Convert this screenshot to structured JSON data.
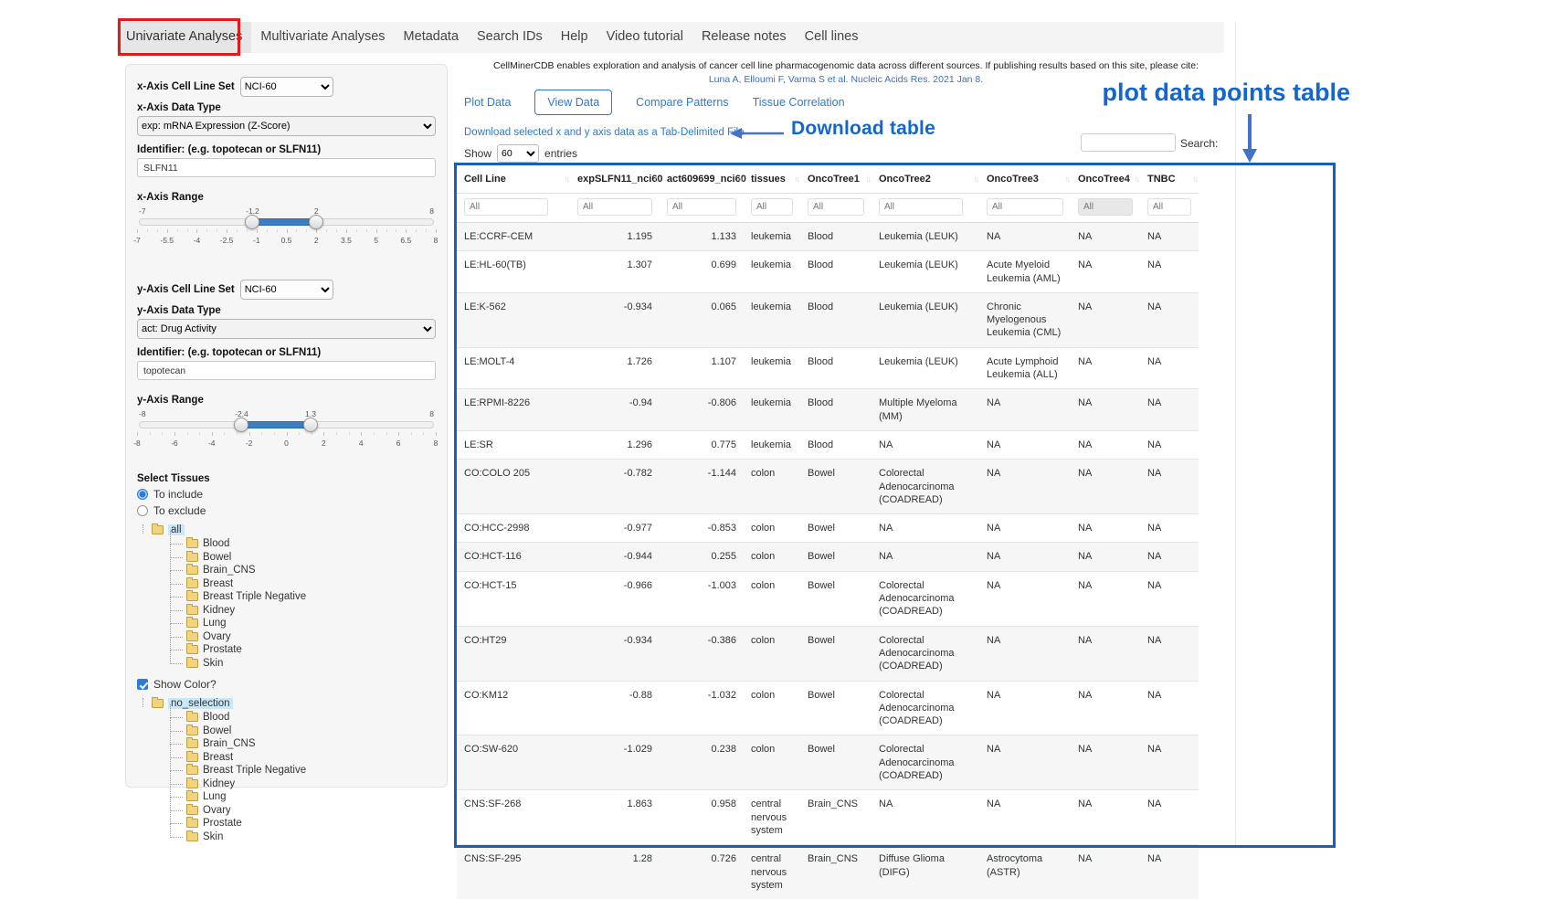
{
  "nav": {
    "items": [
      "Univariate Analyses",
      "Multivariate Analyses",
      "Metadata",
      "Search IDs",
      "Help",
      "Video tutorial",
      "Release notes",
      "Cell lines"
    ],
    "active_index": 0
  },
  "sidebar": {
    "x_axis": {
      "cell_line_set_label": "x-Axis Cell Line Set",
      "cell_line_set_value": "NCI-60",
      "data_type_label": "x-Axis Data Type",
      "data_type_value": "exp: mRNA Expression (Z-Score)",
      "identifier_label": "Identifier: (e.g. topotecan or SLFN11)",
      "identifier_value": "SLFN11",
      "range_label": "x-Axis Range",
      "range": {
        "min": -7,
        "max": 8,
        "low": -1.2,
        "high": 2,
        "min_label": "-7",
        "max_label": "8",
        "low_label": "-1.2",
        "high_label": "2",
        "ticks": [
          "-7",
          "-5.5",
          "-4",
          "-2.5",
          "-1",
          "0.5",
          "2",
          "3.5",
          "5",
          "6.5",
          "8"
        ]
      }
    },
    "y_axis": {
      "cell_line_set_label": "y-Axis Cell Line Set",
      "cell_line_set_value": "NCI-60",
      "data_type_label": "y-Axis Data Type",
      "data_type_value": "act: Drug Activity",
      "identifier_label": "Identifier: (e.g. topotecan or SLFN11)",
      "identifier_value": "topotecan",
      "range_label": "y-Axis Range",
      "range": {
        "min": -8,
        "max": 8,
        "low": -2.4,
        "high": 1.3,
        "min_label": "-8",
        "max_label": "8",
        "low_label": "-2.4",
        "high_label": "1.3",
        "ticks": [
          "-8",
          "-6",
          "-4",
          "-2",
          "0",
          "2",
          "4",
          "6",
          "8"
        ]
      }
    },
    "tissues": {
      "title": "Select Tissues",
      "radio_include": "To include",
      "radio_exclude": "To exclude",
      "include_selected": true,
      "include_tree": {
        "root": "all",
        "children": [
          "Blood",
          "Bowel",
          "Brain_CNS",
          "Breast",
          "Breast Triple Negative",
          "Kidney",
          "Lung",
          "Ovary",
          "Prostate",
          "Skin"
        ]
      },
      "show_color_label": "Show Color?",
      "show_color_checked": true,
      "color_tree": {
        "root": "no_selection",
        "children": [
          "Blood",
          "Bowel",
          "Brain_CNS",
          "Breast",
          "Breast Triple Negative",
          "Kidney",
          "Lung",
          "Ovary",
          "Prostate",
          "Skin"
        ]
      }
    }
  },
  "main": {
    "citation_line1": "CellMinerCDB enables exploration and analysis of cancer cell line pharmacogenomic data across different sources. If publishing results based on this site, please cite:",
    "citation_link": "Luna A, Elloumi F, Varma S et al. Nucleic Acids Res. 2021 Jan 8.",
    "tabs": [
      "Plot Data",
      "View Data",
      "Compare Patterns",
      "Tissue Correlation"
    ],
    "active_tab_index": 1,
    "download_link": "Download selected x and y axis data as a Tab-Delimited File",
    "show_label": "Show",
    "entries_value": "60",
    "entries_label": "entries",
    "search_label": "Search:"
  },
  "annotations": {
    "download_table": "Download table",
    "plot_table": "plot data points table",
    "text_color": "#1266cc",
    "arrow_color": "#4472c4",
    "box_color": "#1b5eb8",
    "red_color": "#e11b1b"
  },
  "table": {
    "filter_placeholder": "All",
    "columns": [
      {
        "label": "Cell Line"
      },
      {
        "label": "expSLFN11_nci60",
        "numeric": true
      },
      {
        "label": "act609699_nci60",
        "numeric": true
      },
      {
        "label": "tissues"
      },
      {
        "label": "OncoTree1"
      },
      {
        "label": "OncoTree2"
      },
      {
        "label": "OncoTree3"
      },
      {
        "label": "OncoTree4",
        "filter_disabled": true
      },
      {
        "label": "TNBC"
      }
    ],
    "rows": [
      [
        "LE:CCRF-CEM",
        "1.195",
        "1.133",
        "leukemia",
        "Blood",
        "Leukemia (LEUK)",
        "NA",
        "NA",
        "NA"
      ],
      [
        "LE:HL-60(TB)",
        "1.307",
        "0.699",
        "leukemia",
        "Blood",
        "Leukemia (LEUK)",
        "Acute Myeloid Leukemia (AML)",
        "NA",
        "NA"
      ],
      [
        "LE:K-562",
        "-0.934",
        "0.065",
        "leukemia",
        "Blood",
        "Leukemia (LEUK)",
        "Chronic Myelogenous Leukemia (CML)",
        "NA",
        "NA"
      ],
      [
        "LE:MOLT-4",
        "1.726",
        "1.107",
        "leukemia",
        "Blood",
        "Leukemia (LEUK)",
        "Acute Lymphoid Leukemia (ALL)",
        "NA",
        "NA"
      ],
      [
        "LE:RPMI-8226",
        "-0.94",
        "-0.806",
        "leukemia",
        "Blood",
        "Multiple Myeloma (MM)",
        "NA",
        "NA",
        "NA"
      ],
      [
        "LE:SR",
        "1.296",
        "0.775",
        "leukemia",
        "Blood",
        "NA",
        "NA",
        "NA",
        "NA"
      ],
      [
        "CO:COLO 205",
        "-0.782",
        "-1.144",
        "colon",
        "Bowel",
        "Colorectal Adenocarcinoma (COADREAD)",
        "NA",
        "NA",
        "NA"
      ],
      [
        "CO:HCC-2998",
        "-0.977",
        "-0.853",
        "colon",
        "Bowel",
        "NA",
        "NA",
        "NA",
        "NA"
      ],
      [
        "CO:HCT-116",
        "-0.944",
        "0.255",
        "colon",
        "Bowel",
        "NA",
        "NA",
        "NA",
        "NA"
      ],
      [
        "CO:HCT-15",
        "-0.966",
        "-1.003",
        "colon",
        "Bowel",
        "Colorectal Adenocarcinoma (COADREAD)",
        "NA",
        "NA",
        "NA"
      ],
      [
        "CO:HT29",
        "-0.934",
        "-0.386",
        "colon",
        "Bowel",
        "Colorectal Adenocarcinoma (COADREAD)",
        "NA",
        "NA",
        "NA"
      ],
      [
        "CO:KM12",
        "-0.88",
        "-1.032",
        "colon",
        "Bowel",
        "Colorectal Adenocarcinoma (COADREAD)",
        "NA",
        "NA",
        "NA"
      ],
      [
        "CO:SW-620",
        "-1.029",
        "0.238",
        "colon",
        "Bowel",
        "Colorectal Adenocarcinoma (COADREAD)",
        "NA",
        "NA",
        "NA"
      ],
      [
        "CNS:SF-268",
        "1.863",
        "0.958",
        "central nervous system",
        "Brain_CNS",
        "NA",
        "NA",
        "NA",
        "NA"
      ],
      [
        "CNS:SF-295",
        "1.28",
        "0.726",
        "central nervous system",
        "Brain_CNS",
        "Diffuse Glioma (DIFG)",
        "Astrocytoma (ASTR)",
        "NA",
        "NA"
      ]
    ]
  }
}
